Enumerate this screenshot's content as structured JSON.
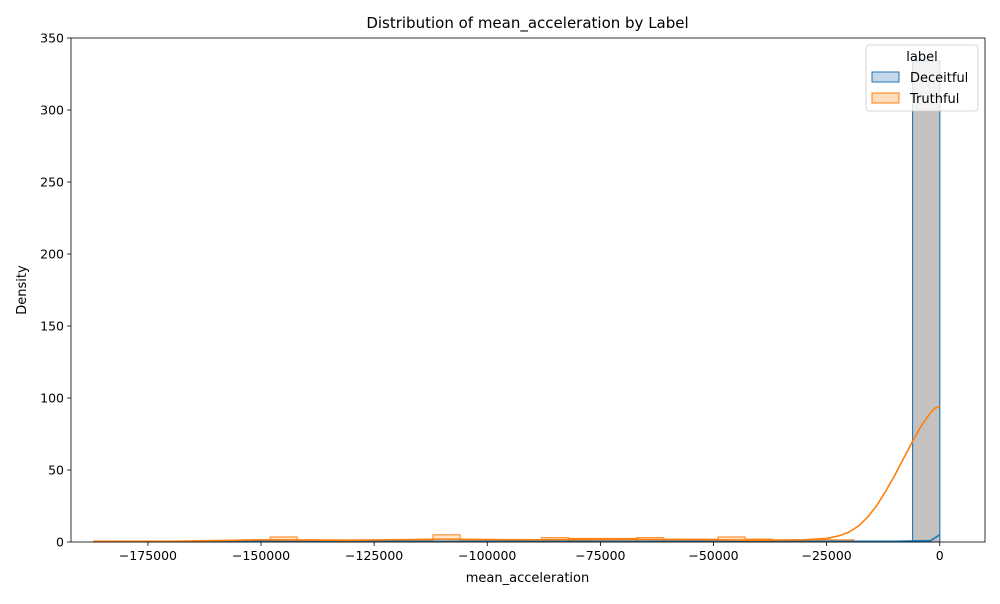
{
  "chart_data": {
    "type": "histogram",
    "title": "Distribution of mean_acceleration by Label",
    "xlabel": "mean_acceleration",
    "ylabel": "Density",
    "xlim": [
      -192000,
      10000
    ],
    "ylim": [
      0,
      350
    ],
    "x_ticks": [
      -175000,
      -150000,
      -125000,
      -100000,
      -75000,
      -50000,
      -25000,
      0
    ],
    "x_tick_labels": [
      "−175000",
      "−150000",
      "−125000",
      "−100000",
      "−75000",
      "−50000",
      "−25000",
      "0"
    ],
    "y_ticks": [
      0,
      50,
      100,
      150,
      200,
      250,
      300,
      350
    ],
    "y_tick_labels": [
      "0",
      "50",
      "100",
      "150",
      "200",
      "250",
      "300",
      "350"
    ],
    "grid": false,
    "legend": {
      "title": "label",
      "placement": "top-right"
    },
    "overlap_color": "#c4c2c0",
    "series": [
      {
        "name": "Deceitful",
        "color": "#1f77b4",
        "fill": "#c5d8ea",
        "bins": [
          {
            "x0": -187000,
            "x1": -6000,
            "density": 0.5
          },
          {
            "x0": -6000,
            "x1": 0,
            "density": 334
          }
        ],
        "kde": [
          [
            -187000,
            0.5
          ],
          [
            -100000,
            0.5
          ],
          [
            -10000,
            0.5
          ],
          [
            -2000,
            1
          ],
          [
            0,
            5
          ]
        ]
      },
      {
        "name": "Truthful",
        "color": "#ff7f0e",
        "fill": "#ffdcba",
        "bins": [
          {
            "x0": -187000,
            "x1": -181000,
            "density": 0.5
          },
          {
            "x0": -148000,
            "x1": -142000,
            "density": 3.5
          },
          {
            "x0": -142000,
            "x1": -112000,
            "density": 1.5
          },
          {
            "x0": -112000,
            "x1": -106000,
            "density": 5
          },
          {
            "x0": -106000,
            "x1": -88000,
            "density": 1.5
          },
          {
            "x0": -88000,
            "x1": -82000,
            "density": 3
          },
          {
            "x0": -82000,
            "x1": -67000,
            "density": 2.5
          },
          {
            "x0": -67000,
            "x1": -61000,
            "density": 3
          },
          {
            "x0": -61000,
            "x1": -49000,
            "density": 2
          },
          {
            "x0": -49000,
            "x1": -43000,
            "density": 3.5
          },
          {
            "x0": -43000,
            "x1": -37000,
            "density": 2
          },
          {
            "x0": -37000,
            "x1": -19000,
            "density": 1.5
          },
          {
            "x0": -6000,
            "x1": 0,
            "density": 2
          }
        ],
        "kde": [
          [
            -187000,
            0.5
          ],
          [
            -170000,
            0.5
          ],
          [
            -150000,
            1.5
          ],
          [
            -130000,
            1.2
          ],
          [
            -110000,
            2
          ],
          [
            -90000,
            1.5
          ],
          [
            -70000,
            1.8
          ],
          [
            -50000,
            1.5
          ],
          [
            -40000,
            1.2
          ],
          [
            -30000,
            1.5
          ],
          [
            -25000,
            2.5
          ],
          [
            -22000,
            4.5
          ],
          [
            -20000,
            7
          ],
          [
            -18000,
            11
          ],
          [
            -16000,
            17
          ],
          [
            -14000,
            25
          ],
          [
            -12000,
            35
          ],
          [
            -10000,
            46
          ],
          [
            -8000,
            58
          ],
          [
            -6000,
            70
          ],
          [
            -4000,
            81
          ],
          [
            -2000,
            90
          ],
          [
            -1000,
            93
          ],
          [
            0,
            94
          ]
        ]
      }
    ]
  }
}
